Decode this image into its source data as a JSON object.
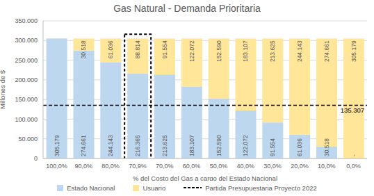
{
  "chart_data": {
    "type": "bar",
    "title": "Gas Natural - Demanda Prioritaria",
    "x_label": "% del Costo del Gas a cargo del Estado Nacional",
    "y_label": "Millones de $",
    "categories": [
      "100,0%",
      "90,0%",
      "80,0%",
      "70,9%",
      "70,0%",
      "60,0%",
      "50,0%",
      "40,0%",
      "30,0%",
      "20,0%",
      "10,0%",
      "0,0%"
    ],
    "series": [
      {
        "name": "Estado Nacional",
        "color": "#bdd7ee",
        "values": [
          305179,
          274661,
          244143,
          216365,
          213625,
          183107,
          152590,
          122072,
          91554,
          61036,
          30518,
          0
        ],
        "value_labels": [
          "305.179",
          "274.661",
          "244.143",
          "216.365",
          "213.625",
          "183.107",
          "152.590",
          "122.072",
          "91.554",
          "61.036",
          "30.518",
          "-"
        ]
      },
      {
        "name": "Usuario",
        "color": "#ffe699",
        "values": [
          0,
          30518,
          61036,
          88814,
          91554,
          122072,
          152590,
          183107,
          213625,
          244143,
          274661,
          305179
        ],
        "value_labels": [
          null,
          "30.518",
          "61.036",
          "88.814",
          "91.554",
          "122.072",
          "152.590",
          "183.107",
          "213.625",
          "244.143",
          "274.661",
          "305.179"
        ]
      }
    ],
    "reference_line": {
      "name": "Partida Presupuestaria Proyecto 2022",
      "value": 135307,
      "label": "135.307",
      "color": "#000000",
      "line_style": "dashed"
    },
    "highlight_category": "70,9%",
    "stacked": true,
    "data_labels": true,
    "grid": true,
    "legend": "bottom",
    "ylim": [
      0,
      350000
    ],
    "yticks": [
      0,
      {
        "value": 50000,
        "label": "50.000"
      },
      {
        "value": 100000,
        "label": "100.000"
      },
      {
        "value": 150000,
        "label": "150.000"
      },
      {
        "value": 200000,
        "label": "200.000"
      },
      {
        "value": 250000,
        "label": "250.000"
      },
      {
        "value": 300000,
        "label": "300.000"
      },
      {
        "value": 350000,
        "label": "350.000"
      }
    ]
  }
}
